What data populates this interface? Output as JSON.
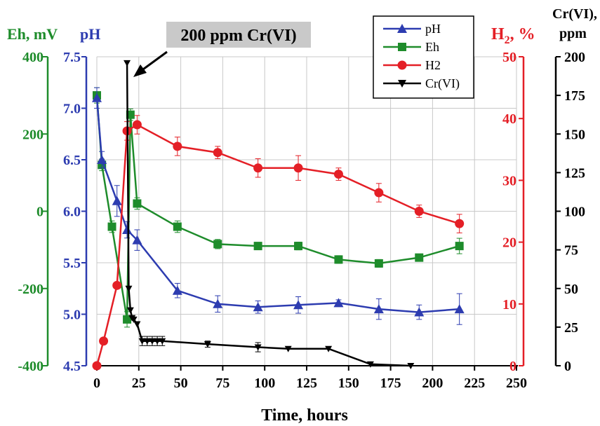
{
  "chart_data": {
    "type": "line",
    "annotation": "200 ppm Cr(VI)",
    "xlabel": "Time, hours",
    "xlim": [
      0,
      250
    ],
    "xticks": [
      "0",
      "25",
      "50",
      "75",
      "100",
      "125",
      "150",
      "175",
      "200",
      "225",
      "250"
    ],
    "axes": {
      "eh": {
        "label": "Eh, mV",
        "color": "#1e8c2b",
        "ylim": [
          -400,
          400
        ],
        "ticks": [
          "-400",
          "-200",
          "0",
          "200",
          "400"
        ]
      },
      "ph": {
        "label": "pH",
        "color": "#2d3cb0",
        "ylim": [
          4.5,
          7.5
        ],
        "ticks": [
          "4.5",
          "5.0",
          "5.5",
          "6.0",
          "6.5",
          "7.0",
          "7.5"
        ]
      },
      "h2": {
        "label_main": "H",
        "label_sub": "2",
        "label_tail": ", %",
        "color": "#e41f26",
        "ylim": [
          0,
          50
        ],
        "ticks": [
          "0",
          "10",
          "20",
          "30",
          "40",
          "50"
        ]
      },
      "cr": {
        "label_line1": "Cr(VI),",
        "label_line2": "ppm",
        "color": "#000000",
        "ylim": [
          0,
          200
        ],
        "ticks": [
          "0",
          "25",
          "50",
          "75",
          "100",
          "125",
          "150",
          "175",
          "200"
        ]
      }
    },
    "legend": {
      "placement": "top-right",
      "entries": [
        "pH",
        "Eh",
        "H2",
        "Cr(VI)"
      ]
    },
    "series": [
      {
        "name": "pH",
        "axis": "ph",
        "color": "#2d3cb0",
        "marker": "triangle-up",
        "x": [
          0,
          3,
          12,
          18,
          24,
          48,
          72,
          96,
          120,
          144,
          168,
          192,
          216
        ],
        "y": [
          7.1,
          6.5,
          6.1,
          5.82,
          5.72,
          5.23,
          5.1,
          5.07,
          5.09,
          5.11,
          5.05,
          5.02,
          5.05
        ],
        "err": [
          0.1,
          0.08,
          0.15,
          0.08,
          0.1,
          0.07,
          0.08,
          0.06,
          0.08,
          0.03,
          0.1,
          0.07,
          0.15
        ]
      },
      {
        "name": "Eh",
        "axis": "eh",
        "color": "#1e8c2b",
        "marker": "square",
        "x": [
          0,
          3,
          9,
          18,
          20,
          24,
          48,
          72,
          96,
          120,
          144,
          168,
          192,
          216
        ],
        "y": [
          300,
          120,
          -40,
          -280,
          250,
          20,
          -40,
          -85,
          -90,
          -90,
          -125,
          -135,
          -120,
          -90
        ],
        "err": [
          20,
          15,
          15,
          20,
          15,
          15,
          15,
          12,
          8,
          10,
          10,
          10,
          8,
          20
        ]
      },
      {
        "name": "H2",
        "axis": "h2",
        "color": "#e41f26",
        "marker": "circle",
        "x": [
          0,
          4,
          12,
          18,
          24,
          48,
          72,
          96,
          120,
          144,
          168,
          192,
          216
        ],
        "y": [
          0,
          4,
          13,
          38,
          39,
          35.5,
          34.5,
          32,
          32,
          31,
          28,
          25,
          23
        ],
        "err": [
          0,
          0,
          0,
          1.5,
          1.5,
          1.5,
          1,
          1.5,
          2,
          1,
          1.5,
          1,
          1.5
        ]
      },
      {
        "name": "Cr(VI)",
        "axis": "cr",
        "color": "#000000",
        "marker": "triangle-down",
        "x": [
          18,
          19,
          20,
          21,
          22,
          24,
          27,
          30,
          33,
          36,
          39,
          66,
          96,
          114,
          138,
          163,
          187
        ],
        "y": [
          196,
          50,
          36,
          31,
          30,
          27,
          16,
          16,
          16,
          16,
          16,
          14,
          12,
          11,
          11,
          1,
          0
        ],
        "err": [
          0,
          0,
          0,
          0,
          0,
          0,
          3,
          3,
          3,
          3,
          3,
          2,
          3,
          0,
          0,
          0,
          0
        ]
      }
    ]
  }
}
